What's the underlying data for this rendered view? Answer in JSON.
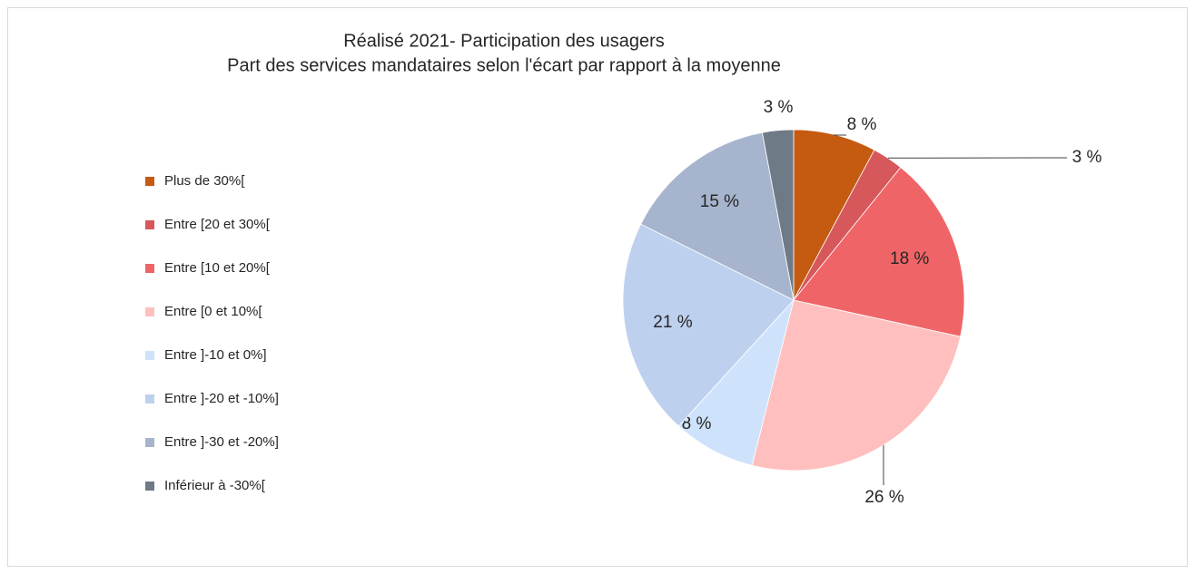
{
  "chart_data": {
    "type": "pie",
    "title": "Réalisé 2021- Participation des usagers",
    "subtitle": "Part des services mandataires selon l'écart par rapport à la moyenne",
    "categories": [
      "Plus de 30%[",
      "Entre [20 et 30%[",
      "Entre [10 et 20%[",
      "Entre [0 et 10%[",
      "Entre ]-10 et 0%]",
      "Entre ]-20 et -10%]",
      "Entre ]-30 et -20%]",
      "Inférieur à -30%["
    ],
    "values": [
      8,
      3,
      18,
      26,
      8,
      21,
      15,
      3
    ],
    "value_labels": [
      "8 %",
      "3 %",
      "18 %",
      "26 %",
      "8 %",
      "21 %",
      "15 %",
      "3 %"
    ],
    "colors": [
      "#c55a11",
      "#d6585b",
      "#ef6567",
      "#ffbfbf",
      "#cfe2fb",
      "#bdd1ef",
      "#a6b5cd",
      "#6f7a87"
    ],
    "legend": "left"
  }
}
